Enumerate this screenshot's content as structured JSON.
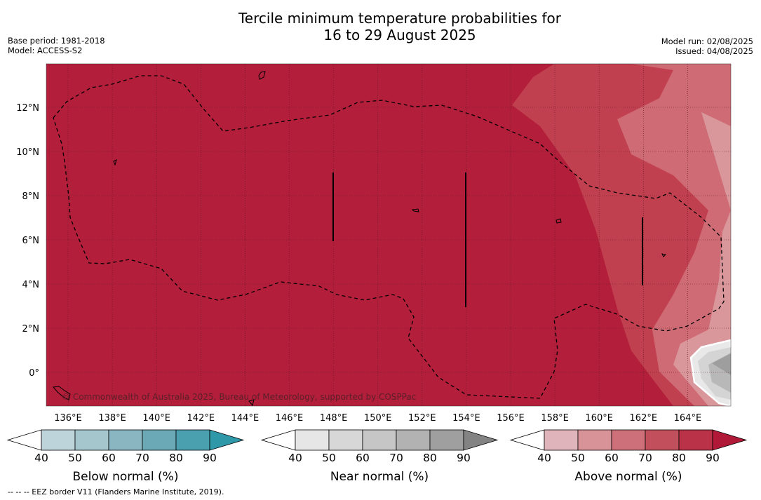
{
  "header": {
    "title_line1": "Tercile minimum temperature probabilities for",
    "title_line2": "16 to 29 August 2025",
    "base_period": "Base period: 1981-2018",
    "model": "Model: ACCESS-S2",
    "model_run": "Model run: 02/08/2025",
    "issued": "Issued: 04/08/2025"
  },
  "map": {
    "x_ticks": [
      "136°E",
      "138°E",
      "140°E",
      "142°E",
      "144°E",
      "146°E",
      "148°E",
      "150°E",
      "152°E",
      "154°E",
      "156°E",
      "158°E",
      "160°E",
      "162°E",
      "164°E"
    ],
    "y_ticks": [
      "12°N",
      "10°N",
      "8°N",
      "6°N",
      "4°N",
      "2°N",
      "0°"
    ],
    "copyright": "© Commonwealth of Australia 2025, Bureau of Meteorology, supported by COSPPac",
    "colors": {
      "base": "#b31e3a",
      "above_70": "#c1404f",
      "above_60": "#ce6b74",
      "above_50": "#d9979c",
      "near_40": "#e8e8e8",
      "near_50": "#d4d4d4",
      "near_60": "#b8b8b8",
      "near_70": "#9e9e9e"
    }
  },
  "colorbars": [
    {
      "label": "Below normal (%)",
      "ticks": [
        "40",
        "50",
        "60",
        "70",
        "80",
        "90"
      ],
      "colors": [
        "#bdd4da",
        "#a5c6cd",
        "#89b6c0",
        "#6aa9b5",
        "#4aa0ae",
        "#2f98a8"
      ]
    },
    {
      "label": "Near normal (%)",
      "ticks": [
        "40",
        "50",
        "60",
        "70",
        "80",
        "90"
      ],
      "colors": [
        "#e6e6e6",
        "#d7d7d7",
        "#c6c6c6",
        "#b2b2b2",
        "#9f9f9f",
        "#838383"
      ]
    },
    {
      "label": "Above normal (%)",
      "ticks": [
        "40",
        "50",
        "60",
        "70",
        "80",
        "90"
      ],
      "colors": [
        "#dfb4ba",
        "#d79398",
        "#cd7079",
        "#c1505c",
        "#b93248",
        "#b01a38"
      ]
    }
  ],
  "footer": "--  --  -- EEZ border V11 (Flanders Marine Institute, 2019)."
}
